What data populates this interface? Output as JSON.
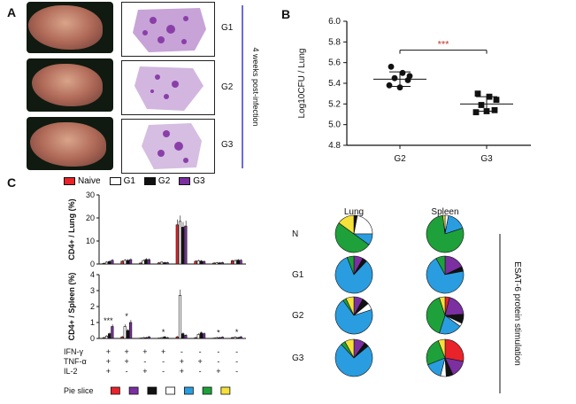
{
  "panels": {
    "a": "A",
    "b": "B",
    "c": "C"
  },
  "panel_a": {
    "group_labels": [
      "G1",
      "G2",
      "G3"
    ],
    "side_label": "4 weeks post-infection"
  },
  "legend_c": [
    {
      "label": "Naive",
      "color": "#e8232a"
    },
    {
      "label": "G1",
      "color": "#ffffff"
    },
    {
      "label": "G2",
      "color": "#111111"
    },
    {
      "label": "G3",
      "color": "#7b2fa0"
    }
  ],
  "pie_titles": {
    "lung": "Lung",
    "spleen": "Spleen"
  },
  "pie_rows": [
    "N",
    "G1",
    "G2",
    "G3"
  ],
  "pie_side_label": "ESAT-6 protein stimulation",
  "cytokine_rows": [
    {
      "name": "IFN-γ",
      "signs": [
        "+",
        "+",
        "+",
        "+",
        "-",
        "-",
        "-",
        "-"
      ]
    },
    {
      "name": "TNF-α",
      "signs": [
        "+",
        "+",
        "-",
        "-",
        "+",
        "+",
        "-",
        "-"
      ]
    },
    {
      "name": "IL-2",
      "signs": [
        "+",
        "-",
        "+",
        "-",
        "+",
        "-",
        "+",
        "-"
      ]
    }
  ],
  "pie_slice_label": "Pie slice",
  "pie_slice_colors": [
    "#e8232a",
    "#7b2fa0",
    "#111111",
    "#ffffff",
    "#2a9de0",
    "#1ea13a",
    "#f5e13a"
  ],
  "chart_data": [
    {
      "type": "scatter",
      "title": "",
      "ylabel": "Log10CFU / Lung",
      "xlabel": "",
      "categories": [
        "G2",
        "G3"
      ],
      "ylim": [
        4.8,
        6.0
      ],
      "yticks": [
        "4.8",
        "5.0",
        "5.2",
        "5.4",
        "5.6",
        "5.8",
        "6.0"
      ],
      "series": [
        {
          "name": "G2",
          "marker": "circle",
          "values": [
            5.56,
            5.5,
            5.47,
            5.45,
            5.43,
            5.38,
            5.36
          ]
        },
        {
          "name": "G3",
          "marker": "square",
          "values": [
            5.3,
            5.27,
            5.24,
            5.19,
            5.14,
            5.12,
            5.13
          ]
        }
      ],
      "means": [
        5.44,
        5.2
      ],
      "sd": [
        0.07,
        0.07
      ],
      "significance": "***"
    },
    {
      "type": "bar",
      "title": "",
      "ylabel": "CD4+ / Lung (%)",
      "ylim": [
        0,
        30
      ],
      "yticks": [
        "0",
        "10",
        "20",
        "30"
      ],
      "series_names": [
        "Naive",
        "G1",
        "G2",
        "G3"
      ],
      "groups": [
        [
          0.3,
          0.8,
          1.1,
          1.6
        ],
        [
          1.2,
          1.6,
          1.6,
          1.9
        ],
        [
          0.4,
          1.5,
          2.0,
          1.9
        ],
        [
          0.5,
          0.8,
          0.6,
          0.6
        ],
        [
          17,
          18.5,
          16,
          16.5
        ],
        [
          1.2,
          1.4,
          1.3,
          1.1
        ],
        [
          0.4,
          0.5,
          0.5,
          0.6
        ],
        [
          1.4,
          1.5,
          1.7,
          1.6
        ]
      ]
    },
    {
      "type": "bar",
      "title": "",
      "ylabel": "CD4+ / Spleen (%)",
      "ylim": [
        0,
        4
      ],
      "yticks": [
        "0",
        "1",
        "2",
        "3",
        "4"
      ],
      "series_names": [
        "Naive",
        "G1",
        "G2",
        "G3"
      ],
      "groups": [
        [
          0.05,
          0.15,
          0.3,
          0.75
        ],
        [
          0.1,
          0.75,
          0.5,
          1.0
        ],
        [
          0.02,
          0.05,
          0.05,
          0.1
        ],
        [
          0.02,
          0.05,
          0.1,
          0.05
        ],
        [
          0.1,
          2.7,
          0.3,
          0.2
        ],
        [
          0.05,
          0.25,
          0.35,
          0.3
        ],
        [
          0.02,
          0.05,
          0.05,
          0.08
        ],
        [
          0.05,
          0.08,
          0.05,
          0.1
        ]
      ],
      "significance": [
        "***",
        "*",
        "",
        "*",
        "",
        "",
        "*",
        "*"
      ]
    },
    {
      "type": "pie",
      "title": "Lung",
      "rows": [
        "N",
        "G1",
        "G2",
        "G3"
      ],
      "slice_colors": [
        "#e8232a",
        "#7b2fa0",
        "#111111",
        "#ffffff",
        "#2a9de0",
        "#1ea13a",
        "#f5e13a"
      ],
      "values": [
        [
          0,
          0,
          3,
          22,
          10,
          50,
          15
        ],
        [
          0,
          8,
          4,
          0,
          82,
          6,
          0
        ],
        [
          0,
          8,
          6,
          6,
          70,
          3,
          7
        ],
        [
          0,
          10,
          4,
          0,
          74,
          4,
          8
        ]
      ]
    },
    {
      "type": "pie",
      "title": "Spleen",
      "rows": [
        "N",
        "G1",
        "G2",
        "G3"
      ],
      "slice_colors": [
        "#e8232a",
        "#7b2fa0",
        "#111111",
        "#ffffff",
        "#2a9de0",
        "#1ea13a",
        "#f5e13a"
      ],
      "values": [
        [
          0,
          0,
          0,
          3,
          17,
          78,
          2
        ],
        [
          0,
          18,
          4,
          0,
          70,
          8,
          0
        ],
        [
          4,
          20,
          8,
          3,
          20,
          40,
          5
        ],
        [
          28,
          15,
          6,
          5,
          15,
          25,
          6
        ]
      ]
    }
  ]
}
